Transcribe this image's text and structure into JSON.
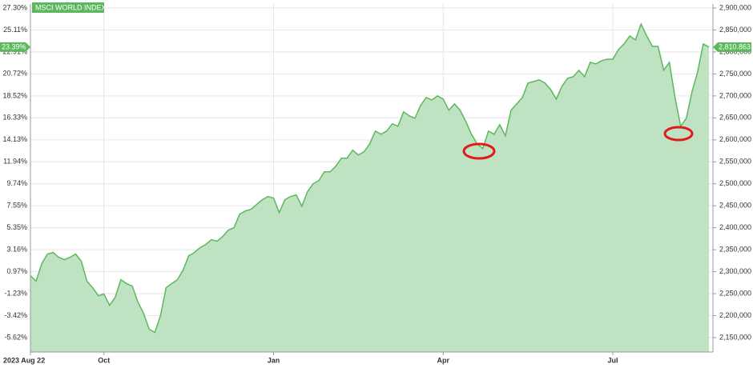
{
  "chart_data": {
    "type": "area",
    "categories": [
      "2023 Aug 22",
      null,
      null,
      null,
      null,
      null,
      null,
      null,
      null,
      null,
      null,
      null,
      null,
      "Oct",
      null,
      null,
      null,
      null,
      null,
      null,
      null,
      null,
      null,
      null,
      null,
      null,
      null,
      null,
      null,
      null,
      null,
      null,
      null,
      null,
      null,
      null,
      null,
      null,
      null,
      null,
      null,
      null,
      null,
      "Jan",
      null,
      null,
      null,
      null,
      null,
      null,
      null,
      null,
      null,
      null,
      null,
      null,
      null,
      null,
      null,
      null,
      null,
      null,
      null,
      null,
      null,
      null,
      null,
      null,
      null,
      null,
      null,
      null,
      null,
      "Apr",
      null,
      null,
      null,
      null,
      null,
      null,
      null,
      null,
      null,
      null,
      null,
      null,
      null,
      null,
      null,
      null,
      null,
      null,
      null,
      null,
      null,
      null,
      null,
      null,
      null,
      null,
      null,
      null,
      null,
      "Jul",
      null,
      null,
      null,
      null,
      null,
      null,
      null,
      null,
      null,
      null,
      null,
      null,
      null,
      null,
      null,
      null,
      null
    ],
    "series": [
      {
        "name": "MSCI WORLD INDEX",
        "color": "#5cb85c",
        "area_color": "#bfe2c3",
        "values": [
          0.57,
          0.01,
          1.76,
          2.72,
          2.88,
          2.4,
          2.16,
          2.4,
          2.72,
          2.0,
          0.01,
          -0.63,
          -1.43,
          -1.27,
          -2.39,
          -1.59,
          0.17,
          -0.23,
          -0.47,
          -2.07,
          -3.18,
          -4.78,
          -5.1,
          -3.42,
          -0.63,
          -0.23,
          0.17,
          1.13,
          2.56,
          2.88,
          3.36,
          3.68,
          4.16,
          4.0,
          4.48,
          5.12,
          5.35,
          6.71,
          7.03,
          7.19,
          7.67,
          8.15,
          8.47,
          8.31,
          6.87,
          8.15,
          8.47,
          8.63,
          7.51,
          8.95,
          9.74,
          10.06,
          10.94,
          10.94,
          11.5,
          12.3,
          12.3,
          13.1,
          12.62,
          12.94,
          13.73,
          15.01,
          14.69,
          15.01,
          15.73,
          15.49,
          16.93,
          16.53,
          16.29,
          17.56,
          18.36,
          18.12,
          18.52,
          18.2,
          17.09,
          17.72,
          17.09,
          15.97,
          14.69,
          13.73,
          13.26,
          15.01,
          14.69,
          15.65,
          14.53,
          17.09,
          17.72,
          18.36,
          19.8,
          19.96,
          20.12,
          19.8,
          19.16,
          18.2,
          19.48,
          20.28,
          20.44,
          21.08,
          20.44,
          21.87,
          21.71,
          22.03,
          22.19,
          22.19,
          23.15,
          23.71,
          24.51,
          24.11,
          25.7,
          24.51,
          23.47,
          23.47,
          21.08,
          21.87,
          18.36,
          15.49,
          16.29,
          18.92,
          20.92,
          23.71,
          23.39
        ]
      }
    ],
    "ylim": [
      -7.06,
      27.7
    ],
    "yticks": [
      {
        "value": 27.3,
        "label": "27.30%"
      },
      {
        "value": 25.11,
        "label": "25.11%"
      },
      {
        "value": 22.91,
        "label": "22.91%"
      },
      {
        "value": 20.72,
        "label": "20.72%"
      },
      {
        "value": 18.52,
        "label": "18.52%"
      },
      {
        "value": 16.33,
        "label": "16.33%"
      },
      {
        "value": 14.13,
        "label": "14.13%"
      },
      {
        "value": 11.94,
        "label": "11.94%"
      },
      {
        "value": 9.74,
        "label": "9.74%"
      },
      {
        "value": 7.55,
        "label": "7.55%"
      },
      {
        "value": 5.35,
        "label": "5.35%"
      },
      {
        "value": 3.16,
        "label": "3.16%"
      },
      {
        "value": 0.97,
        "label": "0.97%"
      },
      {
        "value": -1.23,
        "label": "-1.23%"
      },
      {
        "value": -3.42,
        "label": "-3.42%"
      },
      {
        "value": -5.62,
        "label": "-5.62%"
      }
    ],
    "y2lim": [
      2117300,
      2909100
    ],
    "y2ticks": [
      {
        "value": 2900000,
        "label": "2,900,000"
      },
      {
        "value": 2850000,
        "label": "2,850,000"
      },
      {
        "value": 2800000,
        "label": "2,800,000"
      },
      {
        "value": 2750000,
        "label": "2,750,000"
      },
      {
        "value": 2700000,
        "label": "2,700,000"
      },
      {
        "value": 2650000,
        "label": "2,650,000"
      },
      {
        "value": 2600000,
        "label": "2,600,000"
      },
      {
        "value": 2550000,
        "label": "2,550,000"
      },
      {
        "value": 2500000,
        "label": "2,500,000"
      },
      {
        "value": 2450000,
        "label": "2,450,000"
      },
      {
        "value": 2400000,
        "label": "2,400,000"
      },
      {
        "value": 2350000,
        "label": "2,350,000"
      },
      {
        "value": 2300000,
        "label": "2,300,000"
      },
      {
        "value": 2250000,
        "label": "2,250,000"
      },
      {
        "value": 2200000,
        "label": "2,200,000"
      },
      {
        "value": 2150000,
        "label": "2,150,000"
      }
    ],
    "annotations": [
      {
        "value": 23.39,
        "label": "23.39%",
        "axis": "y"
      },
      {
        "value": 2810863,
        "label": "2,810.863",
        "axis": "y2"
      }
    ],
    "grid": true
  }
}
